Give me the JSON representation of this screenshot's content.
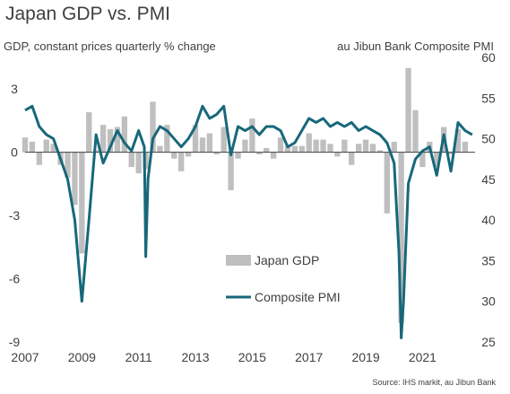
{
  "chart_data": {
    "type": "bar+line",
    "title": "Japan GDP vs. PMI",
    "left_axis_label": "GDP, constant prices quarterly % change",
    "right_axis_label": "au Jibun Bank Composite PMI",
    "source": "Source: IHS markit, au Jibun Bank",
    "x_ticks": [
      "2007",
      "2009",
      "2011",
      "2013",
      "2015",
      "2017",
      "2019",
      "2021"
    ],
    "x_range": [
      2007.0,
      2022.85
    ],
    "left_ticks": [
      "3",
      "0",
      "-3",
      "-6",
      "-9"
    ],
    "left_ylim": [
      -9,
      4.5
    ],
    "right_ticks": [
      "60",
      "55",
      "50",
      "45",
      "40",
      "35",
      "30",
      "25"
    ],
    "right_ylim": [
      25,
      60
    ],
    "grid": false,
    "legend_position": "center",
    "colors": {
      "gdp": "#bfbfbf",
      "pmi": "#17687a",
      "text": "#404040"
    },
    "series": [
      {
        "name": "Japan GDP",
        "axis": "left",
        "kind": "bar",
        "x": [
          2007.0,
          2007.25,
          2007.5,
          2007.75,
          2008.0,
          2008.25,
          2008.5,
          2008.75,
          2009.0,
          2009.25,
          2009.5,
          2009.75,
          2010.0,
          2010.25,
          2010.5,
          2010.75,
          2011.0,
          2011.25,
          2011.5,
          2011.75,
          2012.0,
          2012.25,
          2012.5,
          2012.75,
          2013.0,
          2013.25,
          2013.5,
          2013.75,
          2014.0,
          2014.25,
          2014.5,
          2014.75,
          2015.0,
          2015.25,
          2015.5,
          2015.75,
          2016.0,
          2016.25,
          2016.5,
          2016.75,
          2017.0,
          2017.25,
          2017.5,
          2017.75,
          2018.0,
          2018.25,
          2018.5,
          2018.75,
          2019.0,
          2019.25,
          2019.5,
          2019.75,
          2020.0,
          2020.25,
          2020.5,
          2020.75,
          2021.0,
          2021.25,
          2021.5,
          2021.75,
          2022.0,
          2022.25,
          2022.5
        ],
        "values": [
          0.7,
          0.5,
          -0.6,
          0.6,
          0.4,
          -0.6,
          -1.2,
          -2.5,
          -4.8,
          1.9,
          0.1,
          1.3,
          1.1,
          1.2,
          1.7,
          -0.7,
          -1.0,
          -0.8,
          2.4,
          0.3,
          1.3,
          -0.3,
          -0.9,
          -0.2,
          1.3,
          0.7,
          0.9,
          -0.1,
          1.2,
          -1.8,
          -0.3,
          0.6,
          1.6,
          -0.1,
          0.2,
          -0.3,
          0.7,
          0.3,
          0.3,
          0.3,
          0.9,
          0.6,
          0.6,
          0.4,
          -0.2,
          0.6,
          -0.6,
          0.4,
          0.6,
          0.4,
          0.1,
          -2.9,
          0.5,
          -8.1,
          4.0,
          2.0,
          -0.7,
          0.5,
          -0.7,
          1.2,
          -0.1,
          1.1,
          0.5
        ]
      },
      {
        "name": "Composite PMI",
        "axis": "right",
        "kind": "line",
        "x": [
          2007.0,
          2007.25,
          2007.5,
          2007.75,
          2008.0,
          2008.25,
          2008.5,
          2008.75,
          2009.0,
          2009.25,
          2009.5,
          2009.75,
          2010.0,
          2010.25,
          2010.5,
          2010.75,
          2011.0,
          2011.2,
          2011.25,
          2011.33,
          2011.5,
          2011.75,
          2012.0,
          2012.25,
          2012.5,
          2012.75,
          2013.0,
          2013.25,
          2013.5,
          2013.75,
          2014.0,
          2014.25,
          2014.5,
          2014.75,
          2015.0,
          2015.25,
          2015.5,
          2015.75,
          2016.0,
          2016.25,
          2016.5,
          2016.75,
          2017.0,
          2017.25,
          2017.5,
          2017.75,
          2018.0,
          2018.25,
          2018.5,
          2018.75,
          2019.0,
          2019.25,
          2019.5,
          2019.75,
          2020.0,
          2020.17,
          2020.25,
          2020.33,
          2020.5,
          2020.75,
          2021.0,
          2021.25,
          2021.5,
          2021.75,
          2022.0,
          2022.25,
          2022.5,
          2022.75
        ],
        "values": [
          53.5,
          54.0,
          51.5,
          50.5,
          50.0,
          47.5,
          45.0,
          40.0,
          30.0,
          40.0,
          50.5,
          47.0,
          49.0,
          51.0,
          49.5,
          48.5,
          51.0,
          49.0,
          35.5,
          45.0,
          50.0,
          51.5,
          51.0,
          50.0,
          49.0,
          50.0,
          51.5,
          54.0,
          52.5,
          53.0,
          54.0,
          48.0,
          51.5,
          51.0,
          51.5,
          50.5,
          51.5,
          51.5,
          51.0,
          49.0,
          49.5,
          51.0,
          52.5,
          52.0,
          52.5,
          51.5,
          52.0,
          51.5,
          52.0,
          51.0,
          51.5,
          51.0,
          50.5,
          49.5,
          47.0,
          36.0,
          25.5,
          30.0,
          44.5,
          47.5,
          48.5,
          49.0,
          45.5,
          50.5,
          46.0,
          52.0,
          51.0,
          50.5
        ]
      }
    ]
  }
}
